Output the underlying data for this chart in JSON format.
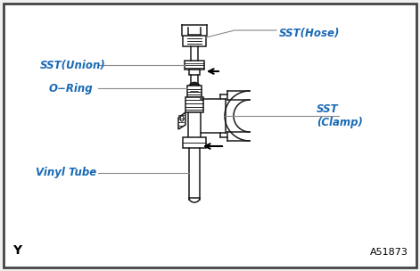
{
  "bg_color": "#f0f0f0",
  "border_color": "#444444",
  "part_color": "#1a1a1a",
  "label_color_blue": "#1a6ab5",
  "labels": {
    "sst_hose": "SST(Hose)",
    "sst_union": "SST(Union)",
    "o_ring": "O−Ring",
    "sst_clamp": "SST\n(Clamp)",
    "vinyl_tube": "Vinyl Tube",
    "corner_y": "Y",
    "corner_ref": "A51873"
  },
  "figsize": [
    4.71,
    3.04
  ],
  "dpi": 100
}
